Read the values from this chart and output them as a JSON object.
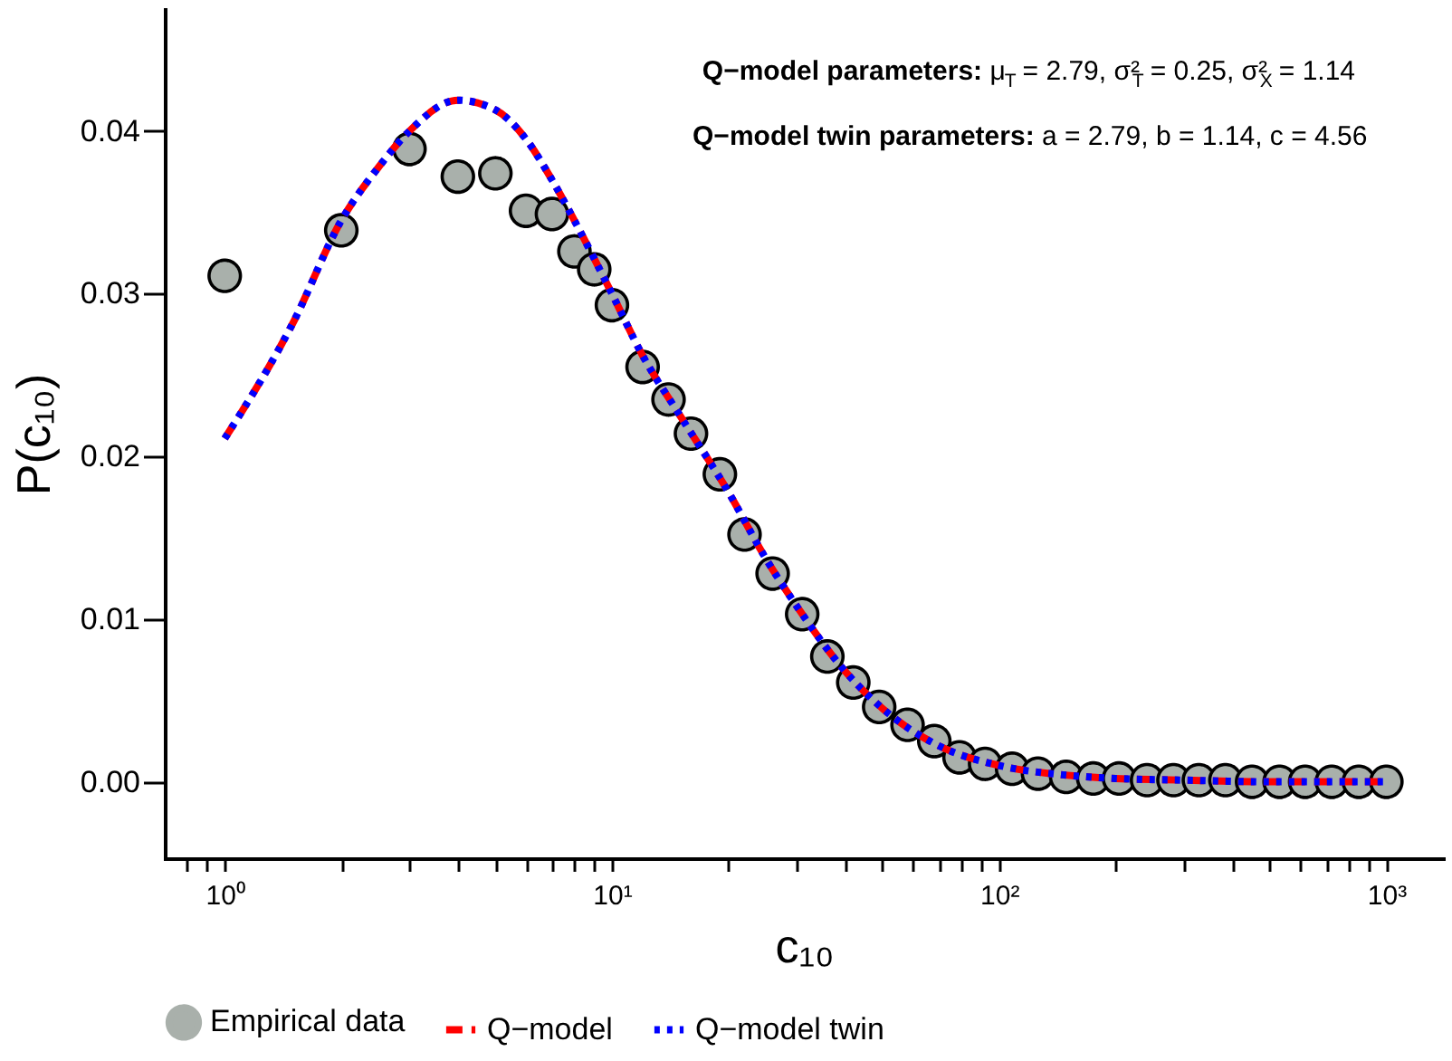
{
  "chart_data": {
    "type": "scatter",
    "xlabel": "c₁₀",
    "ylabel": "P(c₁₀)",
    "log": "x",
    "xlim": [
      0.7,
      1400
    ],
    "ylim": [
      -0.0047,
      0.0475
    ],
    "xticks": [
      {
        "value": 0.8,
        "label": null
      },
      {
        "value": 0.9,
        "label": null
      },
      {
        "value": 1,
        "label": "10⁰"
      },
      {
        "value": 2,
        "label": null
      },
      {
        "value": 3,
        "label": null
      },
      {
        "value": 4,
        "label": null
      },
      {
        "value": 5,
        "label": null
      },
      {
        "value": 6,
        "label": null
      },
      {
        "value": 7,
        "label": null
      },
      {
        "value": 8,
        "label": null
      },
      {
        "value": 9,
        "label": null
      },
      {
        "value": 10,
        "label": "10¹"
      },
      {
        "value": 20,
        "label": null
      },
      {
        "value": 30,
        "label": null
      },
      {
        "value": 40,
        "label": null
      },
      {
        "value": 50,
        "label": null
      },
      {
        "value": 60,
        "label": null
      },
      {
        "value": 70,
        "label": null
      },
      {
        "value": 80,
        "label": null
      },
      {
        "value": 90,
        "label": null
      },
      {
        "value": 100,
        "label": "10²"
      },
      {
        "value": 200,
        "label": null
      },
      {
        "value": 300,
        "label": null
      },
      {
        "value": 400,
        "label": null
      },
      {
        "value": 500,
        "label": null
      },
      {
        "value": 600,
        "label": null
      },
      {
        "value": 700,
        "label": null
      },
      {
        "value": 800,
        "label": null
      },
      {
        "value": 900,
        "label": null
      },
      {
        "value": 1000,
        "label": "10³"
      }
    ],
    "yticks": [
      {
        "value": 0,
        "label": "0.00"
      },
      {
        "value": 0.01,
        "label": "0.01"
      },
      {
        "value": 0.02,
        "label": "0.02"
      },
      {
        "value": 0.03,
        "label": "0.03"
      },
      {
        "value": 0.04,
        "label": "0.04"
      }
    ],
    "grid": false,
    "legend": "bottom",
    "annotations": [
      "Q−model parameters: μ$_{T}$ = 2.79, σ²$_{T}$ = 0.25, σ²$_{X}$ = 1.14",
      "Q−model twin parameters: a = 2.79, b = 1.14, c = 4.56"
    ],
    "series": [
      {
        "name": "Empirical data",
        "marker": "circle",
        "color": "#a9b0ab",
        "x": [
          1,
          2,
          3,
          4,
          5,
          6,
          7,
          8,
          9,
          10,
          12,
          14,
          16,
          19,
          22,
          26,
          31,
          36,
          42,
          49,
          58,
          68,
          79,
          92,
          108,
          126,
          149,
          175,
          204,
          241,
          282,
          328,
          384,
          450,
          530,
          617,
          723,
          849,
          1000
        ],
        "values": [
          0.0311,
          0.0339,
          0.0389,
          0.0372,
          0.0374,
          0.0351,
          0.0349,
          0.0326,
          0.0315,
          0.0293,
          0.0255,
          0.0235,
          0.0214,
          0.0189,
          0.0152,
          0.0128,
          0.0103,
          0.0077,
          0.0061,
          0.0046,
          0.0035,
          0.0025,
          0.0015,
          0.0011,
          0.0008,
          0.0005,
          0.0003,
          0.0002,
          0.0002,
          0.0001,
          0.0001,
          0.0001,
          0.0001,
          0,
          0,
          0,
          0,
          0,
          0
        ]
      },
      {
        "name": "Q−model",
        "type": "line",
        "line_style": "dashed",
        "color": "#ff0000",
        "x": [
          1,
          1.5,
          2,
          2.5,
          3,
          4,
          5,
          6,
          7,
          8,
          10,
          12,
          15,
          20,
          25,
          30,
          40,
          50,
          70,
          100,
          150,
          200,
          300,
          500,
          1000
        ],
        "values": [
          0.0211,
          0.0282,
          0.0345,
          0.0378,
          0.04,
          0.0419,
          0.0413,
          0.0395,
          0.037,
          0.0345,
          0.03,
          0.0262,
          0.0225,
          0.0178,
          0.0137,
          0.0108,
          0.0068,
          0.0045,
          0.0022,
          0.001,
          0.0004,
          0.0002,
          0.0001,
          0,
          0
        ]
      },
      {
        "name": "Q−model twin",
        "type": "line",
        "line_style": "dotted",
        "color": "#0000ff",
        "x": [
          1,
          1.5,
          2,
          2.5,
          3,
          4,
          5,
          6,
          7,
          8,
          10,
          12,
          15,
          20,
          25,
          30,
          40,
          50,
          70,
          100,
          150,
          200,
          300,
          500,
          1000
        ],
        "values": [
          0.0211,
          0.0282,
          0.0345,
          0.0378,
          0.04,
          0.0419,
          0.0413,
          0.0395,
          0.037,
          0.0345,
          0.03,
          0.0262,
          0.0225,
          0.0178,
          0.0137,
          0.0108,
          0.0068,
          0.0045,
          0.0022,
          0.001,
          0.0004,
          0.0002,
          0.0001,
          0,
          0
        ]
      }
    ]
  }
}
